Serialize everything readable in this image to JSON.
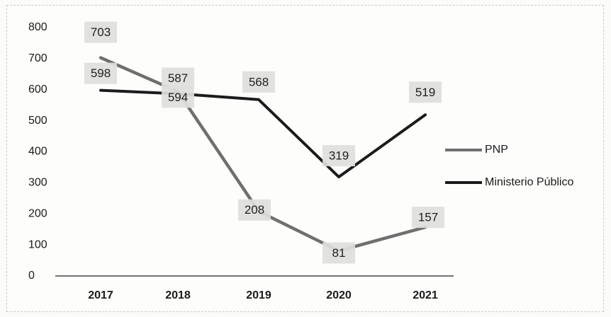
{
  "chart_data": {
    "type": "line",
    "categories": [
      "2017",
      "2018",
      "2019",
      "2020",
      "2021"
    ],
    "series": [
      {
        "name": "PNP",
        "values": [
          703,
          594,
          208,
          81,
          157
        ],
        "color": "#6f6f6f"
      },
      {
        "name": "Ministerio Público",
        "values": [
          598,
          587,
          568,
          319,
          519
        ],
        "color": "#1b1b1b"
      }
    ],
    "yticks": [
      0,
      100,
      200,
      300,
      400,
      500,
      600,
      700,
      800
    ],
    "ylim": [
      0,
      800
    ],
    "legend_position": "right",
    "grid": false
  }
}
